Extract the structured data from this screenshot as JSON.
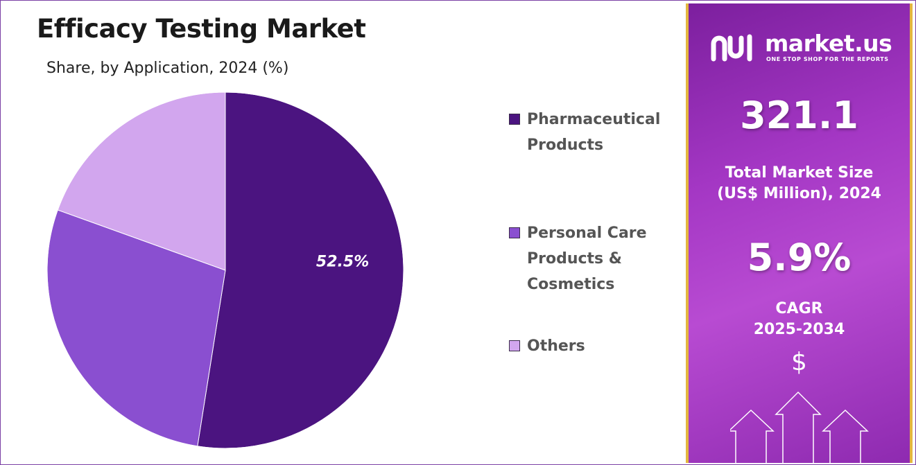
{
  "title": "Efficacy Testing Market",
  "subtitle": "Share, by Application, 2024 (%)",
  "chart_data": {
    "type": "pie",
    "categories": [
      "Pharmaceutical Products",
      "Personal Care Products & Cosmetics",
      "Others"
    ],
    "values": [
      52.5,
      28.0,
      19.5
    ],
    "data_labels": [
      "52.5%",
      "",
      ""
    ],
    "colors": [
      "#4b1480",
      "#8a4fd0",
      "#d2a6ee"
    ],
    "legend_placement": "right"
  },
  "legend": {
    "items": [
      {
        "label": "Pharmaceutical Products",
        "color": "#4b1480"
      },
      {
        "label": "Personal Care Products & Cosmetics",
        "color": "#8a4fd0"
      },
      {
        "label": "Others",
        "color": "#d2a6ee"
      }
    ]
  },
  "sidebar": {
    "brand_name": "market.us",
    "brand_tagline": "ONE STOP SHOP FOR THE REPORTS",
    "market_size_value": "321.1",
    "market_size_label": "Total Market Size\n(US$ Million), 2024",
    "cagr_value": "5.9%",
    "cagr_label": "CAGR\n2025-2034",
    "icon": "dollar-icon",
    "accent_color": "#e4b640",
    "background_color": "#a437c4"
  }
}
